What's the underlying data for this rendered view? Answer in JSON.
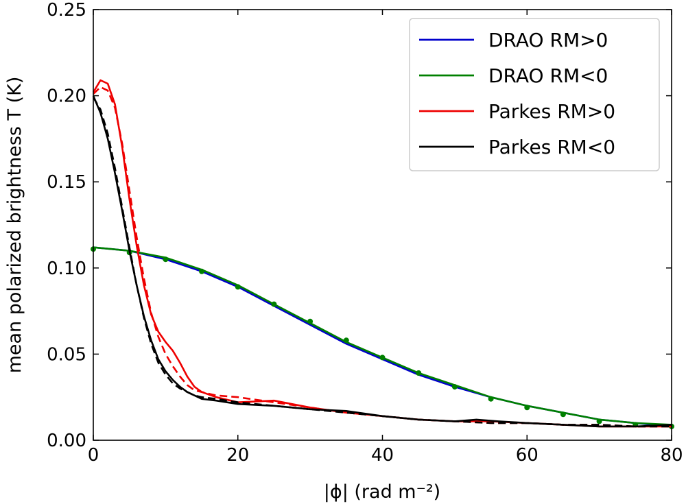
{
  "chart_data": {
    "type": "line",
    "xlabel": "|ϕ| (rad m⁻²)",
    "ylabel": "mean polarized brightness T (K)",
    "xlim": [
      0,
      80
    ],
    "ylim": [
      0,
      0.25
    ],
    "xticks": [
      "0",
      "20",
      "40",
      "60",
      "80"
    ],
    "yticks": [
      "0.00",
      "0.05",
      "0.10",
      "0.15",
      "0.20",
      "0.25"
    ],
    "grid": false,
    "legend_position": "top-right",
    "series": [
      {
        "name": "DRAO RM>0",
        "color": "#0000cc",
        "style": "solid",
        "x": [
          0,
          5,
          10,
          15,
          20,
          25,
          30,
          35,
          40,
          45,
          50,
          55,
          60,
          65,
          70,
          75,
          80
        ],
        "y": [
          0.112,
          0.11,
          0.105,
          0.098,
          0.089,
          0.078,
          0.067,
          0.056,
          0.047,
          0.038,
          0.031,
          0.025,
          0.02,
          0.016,
          0.012,
          0.01,
          0.008
        ]
      },
      {
        "name": "DRAO RM<0",
        "color": "#008000",
        "style": "solid",
        "x": [
          0,
          5,
          10,
          15,
          20,
          25,
          30,
          35,
          40,
          45,
          50,
          55,
          60,
          65,
          70,
          75,
          80
        ],
        "y": [
          0.112,
          0.11,
          0.106,
          0.099,
          0.09,
          0.079,
          0.068,
          0.057,
          0.048,
          0.039,
          0.032,
          0.025,
          0.02,
          0.016,
          0.012,
          0.01,
          0.009
        ]
      },
      {
        "name": "DRAO RM<0 (points)",
        "color": "#008000",
        "style": "markers",
        "x": [
          0,
          5,
          10,
          15,
          20,
          25,
          30,
          35,
          40,
          45,
          50,
          55,
          60,
          65,
          70,
          75,
          80
        ],
        "y": [
          0.111,
          0.109,
          0.105,
          0.098,
          0.089,
          0.079,
          0.069,
          0.058,
          0.048,
          0.039,
          0.031,
          0.024,
          0.019,
          0.015,
          0.011,
          0.009,
          0.008
        ]
      },
      {
        "name": "Parkes RM>0",
        "color": "#ee0000",
        "style": "solid",
        "x": [
          0,
          1,
          2,
          3,
          4,
          5,
          6,
          7,
          8,
          9,
          10,
          11,
          12,
          13,
          14,
          15,
          17,
          20,
          25,
          30,
          35,
          40,
          45,
          50,
          55,
          60,
          65,
          70,
          75,
          80
        ],
        "y": [
          0.202,
          0.209,
          0.207,
          0.195,
          0.17,
          0.14,
          0.113,
          0.09,
          0.073,
          0.063,
          0.057,
          0.052,
          0.045,
          0.037,
          0.031,
          0.028,
          0.025,
          0.022,
          0.023,
          0.019,
          0.016,
          0.014,
          0.012,
          0.011,
          0.011,
          0.01,
          0.009,
          0.008,
          0.008,
          0.008
        ]
      },
      {
        "name": "Parkes RM>0 (dashed)",
        "color": "#ee0000",
        "style": "dashed",
        "x": [
          0,
          1,
          2,
          3,
          4,
          5,
          6,
          7,
          8,
          9,
          10,
          11,
          12,
          13,
          14,
          15,
          17,
          20,
          25,
          30,
          35,
          40,
          45,
          50,
          55,
          60,
          65,
          70,
          75,
          80
        ],
        "y": [
          0.201,
          0.205,
          0.203,
          0.193,
          0.172,
          0.145,
          0.118,
          0.094,
          0.074,
          0.06,
          0.05,
          0.043,
          0.037,
          0.032,
          0.029,
          0.028,
          0.026,
          0.025,
          0.022,
          0.019,
          0.016,
          0.014,
          0.012,
          0.011,
          0.01,
          0.01,
          0.009,
          0.009,
          0.008,
          0.008
        ]
      },
      {
        "name": "Parkes RM<0",
        "color": "#000000",
        "style": "solid",
        "x": [
          0,
          1,
          2,
          3,
          4,
          5,
          6,
          7,
          8,
          9,
          10,
          11,
          12,
          13,
          14,
          15,
          17,
          20,
          25,
          30,
          35,
          40,
          45,
          50,
          53,
          56,
          60,
          65,
          70,
          75,
          80
        ],
        "y": [
          0.2,
          0.19,
          0.175,
          0.155,
          0.133,
          0.11,
          0.09,
          0.072,
          0.058,
          0.047,
          0.04,
          0.035,
          0.031,
          0.028,
          0.026,
          0.024,
          0.023,
          0.021,
          0.02,
          0.018,
          0.017,
          0.014,
          0.012,
          0.011,
          0.012,
          0.011,
          0.01,
          0.009,
          0.008,
          0.008,
          0.009
        ]
      },
      {
        "name": "Parkes RM<0 (dashed)",
        "color": "#000000",
        "style": "dashed",
        "x": [
          0,
          1,
          2,
          3,
          4,
          5,
          6,
          7,
          8,
          9,
          10,
          11,
          12,
          13,
          14,
          15,
          17,
          20,
          25,
          30,
          35,
          40,
          45,
          50,
          55,
          60,
          65,
          70,
          75,
          80
        ],
        "y": [
          0.199,
          0.192,
          0.178,
          0.158,
          0.135,
          0.112,
          0.09,
          0.071,
          0.056,
          0.045,
          0.038,
          0.033,
          0.03,
          0.028,
          0.026,
          0.025,
          0.024,
          0.022,
          0.02,
          0.018,
          0.016,
          0.014,
          0.012,
          0.011,
          0.01,
          0.01,
          0.009,
          0.009,
          0.008,
          0.008
        ]
      }
    ],
    "legend": [
      {
        "label": "DRAO RM>0",
        "color": "#0000cc"
      },
      {
        "label": "DRAO RM<0",
        "color": "#008000"
      },
      {
        "label": "Parkes RM>0",
        "color": "#ee0000"
      },
      {
        "label": "Parkes RM<0",
        "color": "#000000"
      }
    ]
  }
}
